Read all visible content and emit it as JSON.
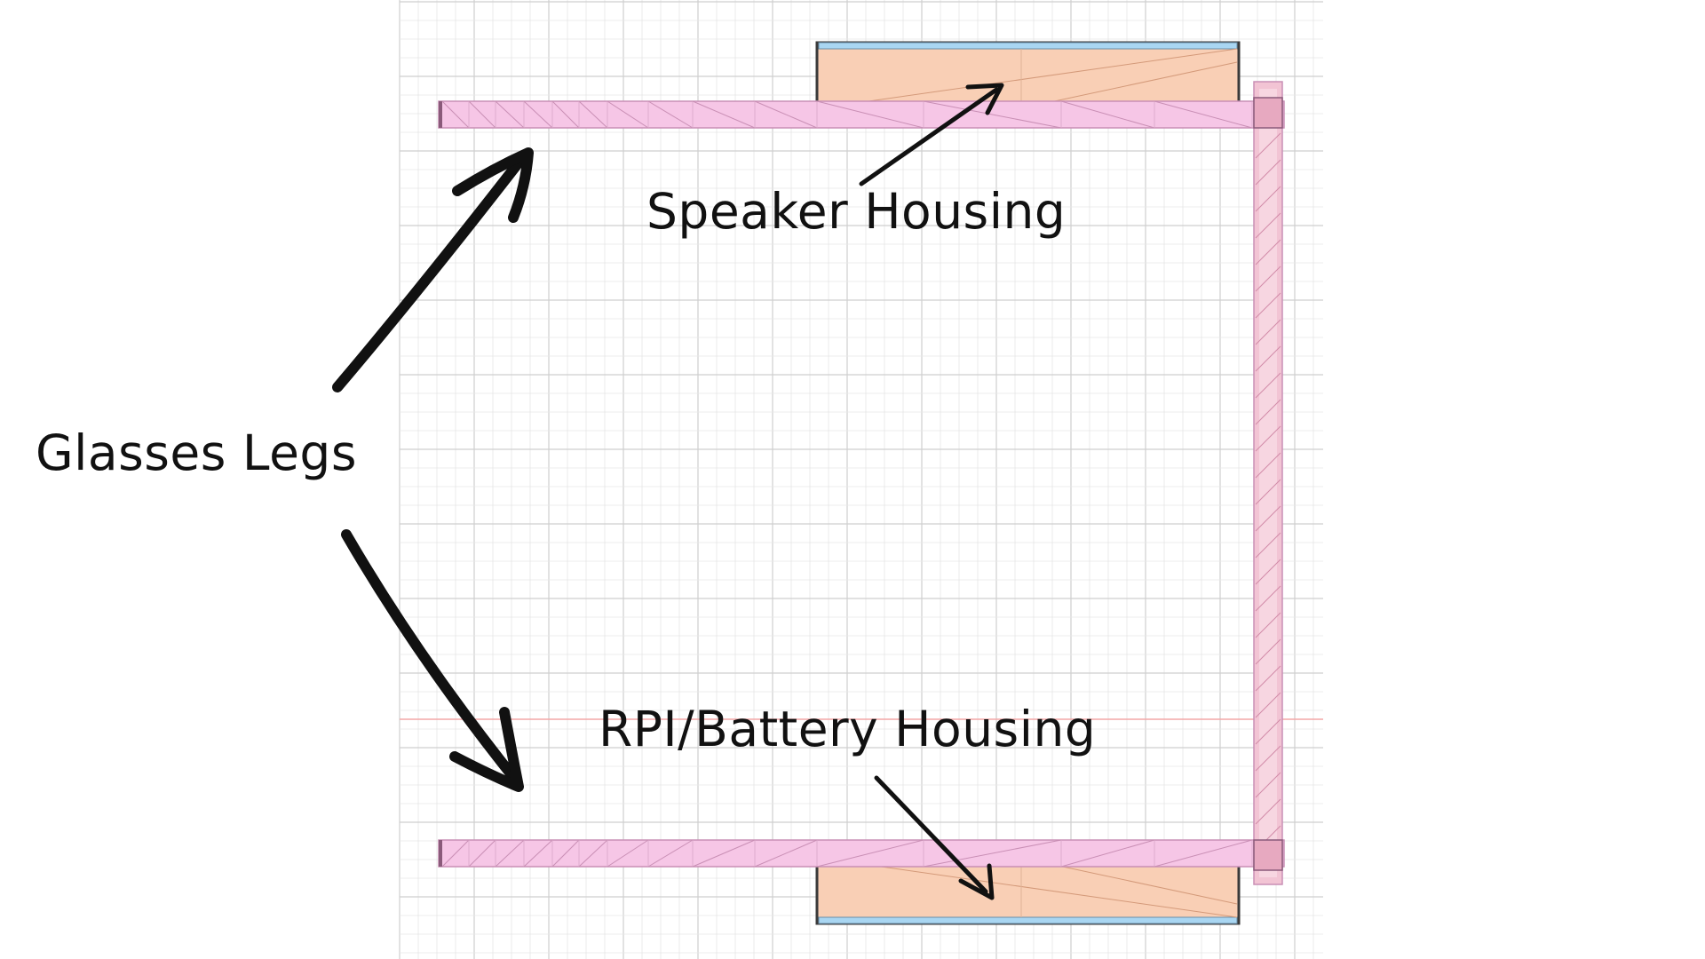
{
  "diagram": {
    "labels": {
      "speaker_housing": "Speaker Housing",
      "glasses_legs": "Glasses Legs",
      "rpi_battery_housing": "RPI/Battery Housing"
    },
    "colors": {
      "background": "#ffffff",
      "grid_line": "#d8d8d8",
      "grid_major": "#c4c4c4",
      "axis_red": "#f3a7a7",
      "leg_fill": "#f6c6e6",
      "leg_stroke": "#c98fb5",
      "housing_fill": "#f9cfb5",
      "housing_stroke": "#3a3a3a",
      "cap_blue": "#a9d6f2",
      "front_frame": "#f2c4d4",
      "arrow": "#111111"
    }
  }
}
